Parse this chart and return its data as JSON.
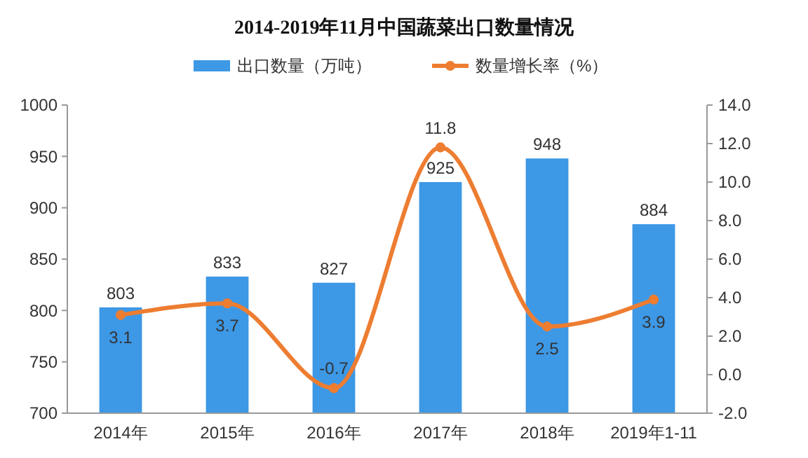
{
  "chart_data": {
    "type": "bar",
    "title": "2014-2019年11月中国蔬菜出口数量情况",
    "categories": [
      "2014年",
      "2015年",
      "2016年",
      "2017年",
      "2018年",
      "2019年1-11"
    ],
    "series": [
      {
        "name": "出口数量（万吨）",
        "color": "#3d98e6",
        "values": [
          803,
          833,
          827,
          925,
          948,
          884
        ]
      },
      {
        "name": "数量增长率（%）",
        "type": "line",
        "axis": "y2",
        "color": "#ed7d31",
        "values": [
          3.1,
          3.7,
          -0.7,
          11.8,
          2.5,
          3.9
        ]
      }
    ],
    "ylim": [
      700,
      1000
    ],
    "yticks": [
      700,
      750,
      800,
      850,
      900,
      950,
      1000
    ],
    "y2lim": [
      -2,
      14
    ],
    "y2ticks": [
      {
        "value": -2,
        "label": "-2.0"
      },
      {
        "value": 0,
        "label": "0.0"
      },
      {
        "value": 2,
        "label": "2.0"
      },
      {
        "value": 4,
        "label": "4.0"
      },
      {
        "value": 6,
        "label": "6.0"
      },
      {
        "value": 8,
        "label": "8.0"
      },
      {
        "value": 10,
        "label": "10.0"
      },
      {
        "value": 12,
        "label": "12.0"
      },
      {
        "value": 14,
        "label": "14.0"
      }
    ],
    "data_labels": true,
    "legend": "top",
    "marker": "circle",
    "grid": false
  }
}
